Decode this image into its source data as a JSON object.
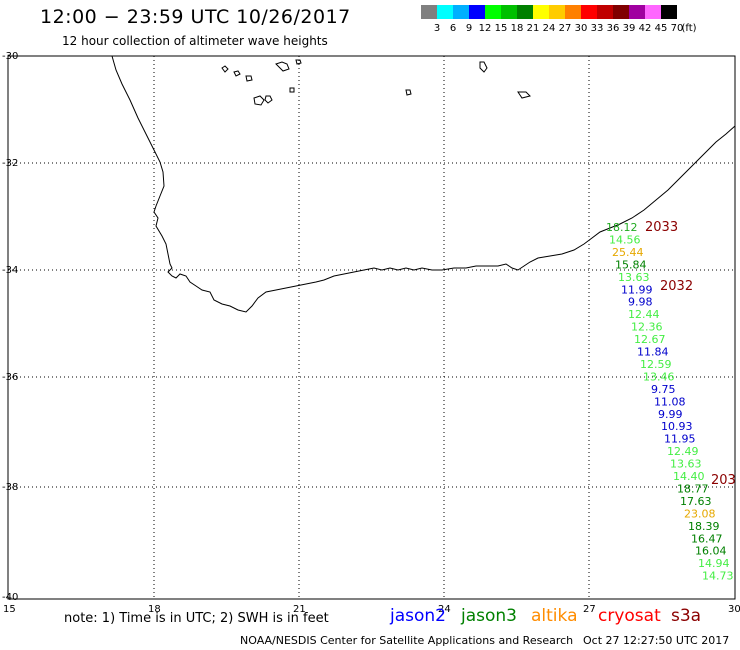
{
  "header": {
    "title": "12:00 − 23:59 UTC 10/26/2017",
    "subtitle": "12 hour collection of altimeter wave heights"
  },
  "legend": {
    "unit": "(ft)",
    "colors": [
      "#808080",
      "#00ffff",
      "#00b0ff",
      "#0000ff",
      "#00ff00",
      "#00c000",
      "#008000",
      "#ffff00",
      "#ffcc00",
      "#ff8000",
      "#ff0000",
      "#c00000",
      "#800000",
      "#a000a0",
      "#ff66ff",
      "#000000"
    ],
    "labels": [
      "3",
      "6",
      "9",
      "12",
      "15",
      "18",
      "21",
      "24",
      "27",
      "30",
      "33",
      "36",
      "39",
      "42",
      "45",
      "70"
    ]
  },
  "axes": {
    "lat_labels": [
      "-30",
      "-32",
      "-34",
      "-36",
      "-38",
      "-40"
    ],
    "lon_labels": [
      "15",
      "18",
      "21",
      "24",
      "27",
      "30"
    ]
  },
  "observations": [
    {
      "value": "18.12",
      "color": "#22aa22"
    },
    {
      "value": "14.56",
      "color": "#44ee44"
    },
    {
      "value": "25.44",
      "color": "#e6a800"
    },
    {
      "value": "15.84",
      "color": "#008000"
    },
    {
      "value": "13.63",
      "color": "#44ee44"
    },
    {
      "value": "11.99",
      "color": "#0000cc"
    },
    {
      "value": "9.98",
      "color": "#0000cc"
    },
    {
      "value": "12.44",
      "color": "#44ee44"
    },
    {
      "value": "12.36",
      "color": "#44ee44"
    },
    {
      "value": "12.67",
      "color": "#44ee44"
    },
    {
      "value": "11.84",
      "color": "#0000cc"
    },
    {
      "value": "12.59",
      "color": "#44ee44"
    },
    {
      "value": "13.46",
      "color": "#44ee44"
    },
    {
      "value": "9.75",
      "color": "#0000cc"
    },
    {
      "value": "11.08",
      "color": "#0000cc"
    },
    {
      "value": "9.99",
      "color": "#0000cc"
    },
    {
      "value": "10.93",
      "color": "#0000cc"
    },
    {
      "value": "11.95",
      "color": "#0000cc"
    },
    {
      "value": "12.49",
      "color": "#44ee44"
    },
    {
      "value": "13.63",
      "color": "#44ee44"
    },
    {
      "value": "14.40",
      "color": "#44ee44"
    },
    {
      "value": "18.77",
      "color": "#008000"
    },
    {
      "value": "17.63",
      "color": "#008000"
    },
    {
      "value": "23.08",
      "color": "#e6a800"
    },
    {
      "value": "18.39",
      "color": "#008000"
    },
    {
      "value": "16.47",
      "color": "#008000"
    },
    {
      "value": "16.04",
      "color": "#008000"
    },
    {
      "value": "14.94",
      "color": "#44ee44"
    },
    {
      "value": "14.73",
      "color": "#44ee44"
    }
  ],
  "pass_labels": [
    "2033",
    "2032",
    "203"
  ],
  "footer": {
    "note": "note: 1) Time is in UTC; 2) SWH is in feet",
    "satellites": [
      {
        "name": "jason2",
        "color": "#0000ff"
      },
      {
        "name": "jason3",
        "color": "#008000"
      },
      {
        "name": "altika",
        "color": "#ff8c00"
      },
      {
        "name": "cryosat",
        "color": "#ff0000"
      },
      {
        "name": "s3a",
        "color": "#8b0000"
      }
    ],
    "credit": "NOAA/NESDIS Center for Satellite Applications and Research",
    "timestamp": "Oct 27 12:27:50 UTC 2017"
  }
}
